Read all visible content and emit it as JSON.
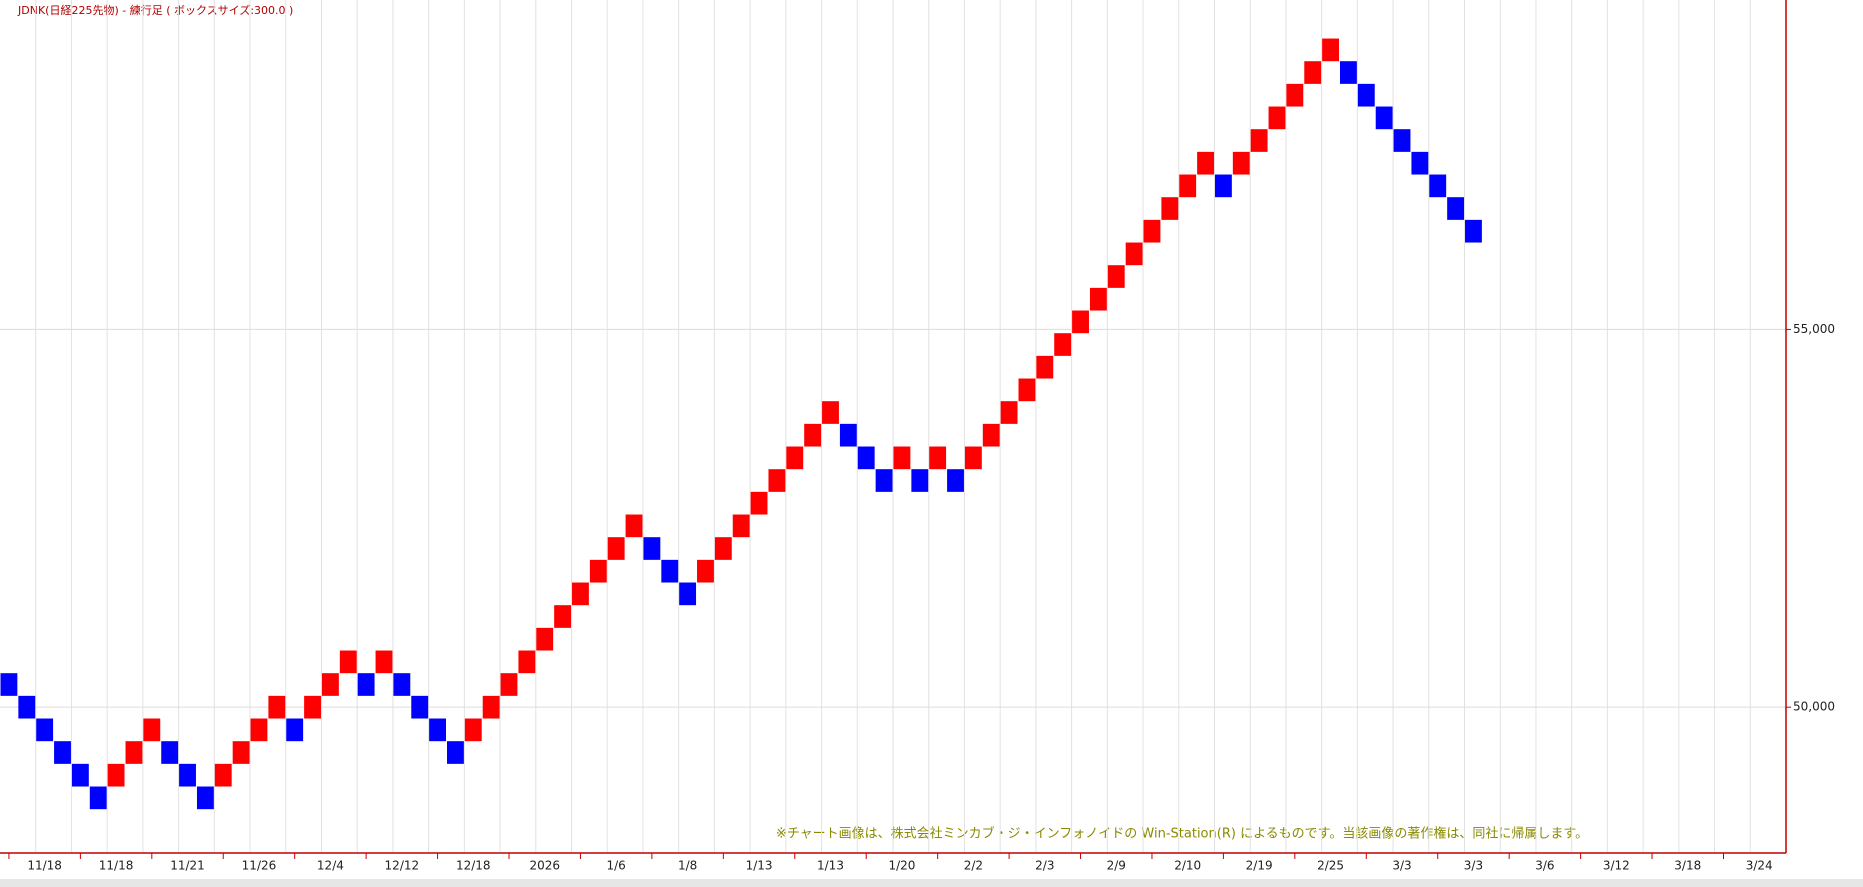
{
  "chart_data": {
    "type": "renko",
    "title": "JDNK(日経225先物) - 練行足 ( ボックスサイズ:300.0 )",
    "note": "※チャート画像は、株式会社ミンカブ・ジ・インフォノイドの Win-Station(R) によるものです。当該画像の著作権は、同社に帰属します。",
    "box_size": 300,
    "up_color": "#ff0000",
    "down_color": "#0000ff",
    "categories": [
      null,
      null,
      "11/18",
      null,
      null,
      null,
      "11/18",
      null,
      null,
      null,
      "11/21",
      null,
      null,
      null,
      "11/26",
      null,
      null,
      null,
      "12/4",
      null,
      null,
      null,
      "12/12",
      null,
      null,
      null,
      "12/18",
      null,
      null,
      null,
      "2026",
      null,
      null,
      null,
      "1/6",
      null,
      null,
      null,
      "1/8",
      null,
      null,
      null,
      "1/13",
      null,
      null,
      null,
      "1/13",
      null,
      null,
      null,
      "1/20",
      null,
      null,
      null,
      "2/2",
      null,
      null,
      null,
      "2/3",
      null,
      null,
      null,
      "2/9",
      null,
      null,
      null,
      "2/10",
      null,
      null,
      null,
      "2/19",
      null,
      null,
      null,
      "2/25",
      null,
      null,
      null,
      "3/3",
      null,
      null,
      null,
      "3/3",
      null,
      null,
      null,
      "3/6",
      null,
      null,
      null,
      "3/12",
      null,
      null,
      null,
      "3/18",
      null,
      null,
      null,
      "3/24",
      null
    ],
    "values": [
      50450,
      50150,
      49850,
      49550,
      49250,
      48950,
      49250,
      49550,
      49850,
      49550,
      49250,
      48950,
      49250,
      49550,
      49850,
      50150,
      49850,
      50150,
      50450,
      50750,
      50450,
      50750,
      50450,
      50150,
      49850,
      49550,
      49850,
      50150,
      50450,
      50750,
      51050,
      51350,
      51650,
      51950,
      52250,
      52550,
      52250,
      51950,
      51650,
      51950,
      52250,
      52550,
      52850,
      53150,
      53450,
      53750,
      54050,
      53750,
      53450,
      53150,
      53450,
      53150,
      53450,
      53150,
      53450,
      53750,
      54050,
      54350,
      54650,
      54950,
      55250,
      55550,
      55850,
      56150,
      56450,
      56750,
      57050,
      57350,
      57050,
      57350,
      57650,
      57950,
      58250,
      58550,
      58850,
      58550,
      58250,
      57950,
      57650,
      57350,
      57050,
      56750,
      56450,
      null,
      null,
      null,
      null,
      null,
      null,
      null,
      null,
      null,
      null,
      null,
      null,
      null,
      null,
      null,
      null,
      null
    ],
    "ylim": [
      48070,
      59360
    ],
    "yticks": [
      {
        "value": 50000,
        "label": "50,000"
      },
      {
        "value": 55000,
        "label": "55,000"
      }
    ],
    "grid": true
  }
}
